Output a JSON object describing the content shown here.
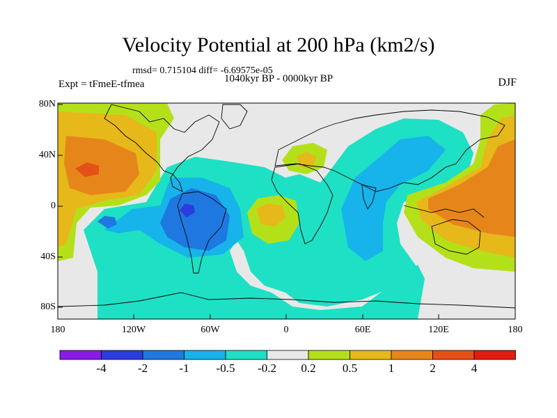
{
  "title": "Velocity Potential at 200 hPa (km2/s)",
  "stats_line": "rmsd= 0.715104 diff= -6.69575e-05",
  "period_line": "1040kyr BP - 0000kyr BP",
  "experiment": "Expt = tFmeE-tfmea",
  "season": "DJF",
  "axes": {
    "y_labels": [
      "80N",
      "40N",
      "0",
      "40S",
      "80S"
    ],
    "x_labels": [
      "180",
      "120W",
      "60W",
      "0",
      "60E",
      "120E",
      "180"
    ]
  },
  "colorbar": {
    "labels": [
      "-4",
      "-2",
      "-1",
      "-0.5",
      "-0.2",
      "0.2",
      "0.5",
      "1",
      "2",
      "4"
    ],
    "colors": [
      "#8a1ae8",
      "#2a3ce0",
      "#1e78e0",
      "#16b4ea",
      "#1ee0c4",
      "#e8e8e8",
      "#b4e01a",
      "#e6b81a",
      "#e6861a",
      "#e65016",
      "#e61a10"
    ]
  },
  "colors": {
    "ocean_bg": "#e8e8e8",
    "land_outline": "#000000"
  }
}
